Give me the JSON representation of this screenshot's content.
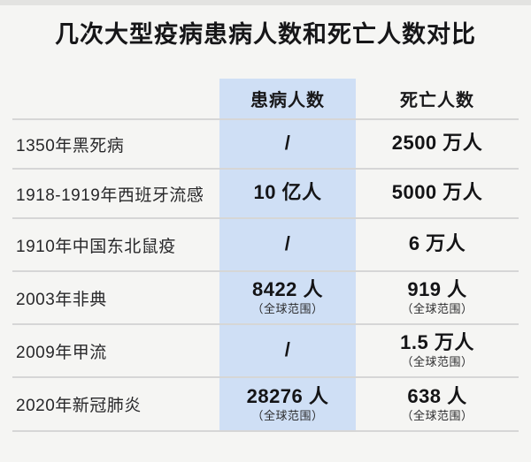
{
  "title": "几次大型疫病患病人数和死亡人数对比",
  "colors": {
    "background": "#f5f5f3",
    "highlight_column": "#cfdff5",
    "divider": "#d6d6d6",
    "text": "#1b1b1d"
  },
  "table": {
    "col_cases": "患病人数",
    "col_deaths": "死亡人数",
    "rows": [
      {
        "label": "1350年黑死病",
        "cases": "/",
        "cases_note": "",
        "deaths": "2500 万人",
        "deaths_note": ""
      },
      {
        "label": "1918-1919年西班牙流感",
        "cases": "10 亿人",
        "cases_note": "",
        "deaths": "5000 万人",
        "deaths_note": ""
      },
      {
        "label": "1910年中国东北鼠疫",
        "cases": "/",
        "cases_note": "",
        "deaths": "6 万人",
        "deaths_note": ""
      },
      {
        "label": "2003年非典",
        "cases": "8422 人",
        "cases_note": "（全球范围）",
        "deaths": "919 人",
        "deaths_note": "（全球范围）"
      },
      {
        "label": "2009年甲流",
        "cases": "/",
        "cases_note": "",
        "deaths": "1.5 万人",
        "deaths_note": "（全球范围）"
      },
      {
        "label": "2020年新冠肺炎",
        "cases": "28276 人",
        "cases_note": "（全球范围）",
        "deaths": "638 人",
        "deaths_note": "（全球范围）"
      }
    ]
  },
  "chart_data": {
    "type": "table",
    "title": "几次大型疫病患病人数和死亡人数对比",
    "columns": [
      "",
      "患病人数",
      "死亡人数"
    ],
    "rows": [
      [
        "1350年黑死病",
        "/",
        "2500 万人"
      ],
      [
        "1918-1919年西班牙流感",
        "10 亿人",
        "5000 万人"
      ],
      [
        "1910年中国东北鼠疫",
        "/",
        "6 万人"
      ],
      [
        "2003年非典",
        "8422 人（全球范围）",
        "919 人（全球范围）"
      ],
      [
        "2009年甲流",
        "/",
        "1.5 万人（全球范围）"
      ],
      [
        "2020年新冠肺炎",
        "28276 人（全球范围）",
        "638 人（全球范围）"
      ]
    ],
    "layout": {
      "highlight_column": "患病人数",
      "highlight_color": "#cfdff5",
      "grid": "horizontal-dividers",
      "legend": "none"
    }
  }
}
